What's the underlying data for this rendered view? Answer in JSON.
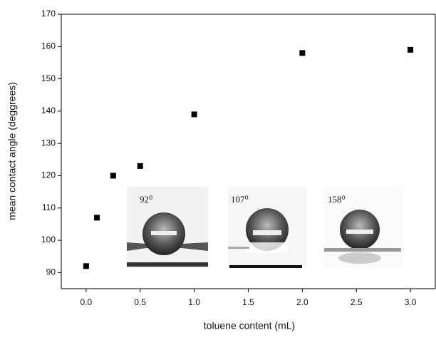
{
  "chart_data": {
    "type": "scatter",
    "x_label": "toluene content (mL)",
    "y_label": "mean contact angle (deggrees)",
    "x": [
      0,
      0.1,
      0.25,
      0.5,
      1,
      2,
      3
    ],
    "values": [
      92,
      107,
      120,
      123,
      139,
      158,
      159
    ],
    "color": "#000000",
    "xlim": [
      -0.23,
      3.23
    ],
    "ylim": [
      85,
      170
    ],
    "xticks": [
      {
        "value": 0,
        "label": "0.0"
      },
      0.5,
      {
        "value": 1,
        "label": "1.0"
      },
      1.5,
      {
        "value": 2,
        "label": "2.0"
      },
      2.5,
      {
        "value": 3,
        "label": "3.0"
      }
    ],
    "yticks": [
      90,
      100,
      110,
      120,
      130,
      140,
      150,
      160,
      170
    ],
    "annotations": [
      "92⁰",
      "107⁰",
      "158⁰"
    ]
  }
}
